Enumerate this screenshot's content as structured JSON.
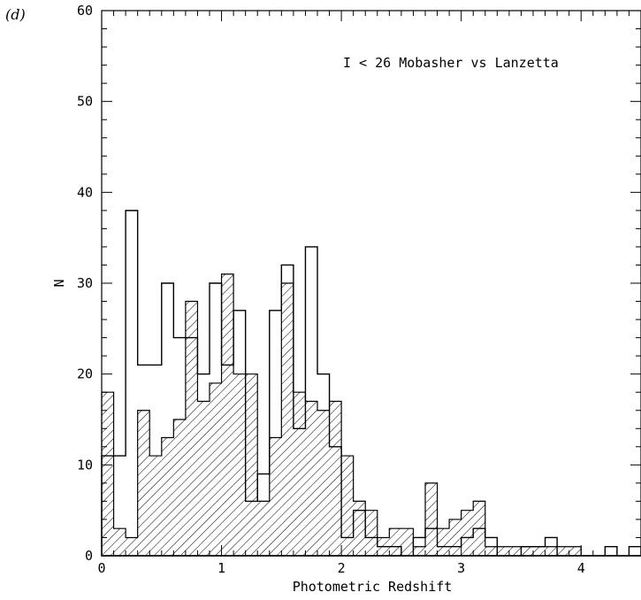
{
  "panel_label": "(d)",
  "chart_data": {
    "type": "histogram",
    "annotation": "I < 26 Mobasher vs Lanzetta",
    "xlabel": "Photometric Redshift",
    "ylabel": "N",
    "xlim": [
      0,
      4.5
    ],
    "ylim": [
      0,
      60
    ],
    "xticks": [
      0,
      1,
      2,
      3,
      4
    ],
    "yticks": [
      0,
      10,
      20,
      30,
      40,
      50,
      60
    ],
    "bin_width": 0.1,
    "grid": false,
    "series": [
      {
        "style": "open-outline",
        "values": [
          11,
          11,
          38,
          21,
          21,
          30,
          24,
          24,
          20,
          30,
          21,
          27,
          6,
          9,
          27,
          32,
          14,
          34,
          20,
          12,
          2,
          5,
          2,
          1,
          1,
          0,
          2,
          3,
          1,
          1,
          2,
          3,
          2,
          0,
          0,
          1,
          1,
          2,
          0,
          0,
          0,
          0,
          1,
          0,
          1
        ]
      },
      {
        "style": "hatched",
        "values": [
          18,
          3,
          2,
          16,
          11,
          13,
          15,
          28,
          17,
          19,
          31,
          20,
          20,
          6,
          13,
          30,
          18,
          17,
          16,
          17,
          11,
          6,
          5,
          2,
          3,
          3,
          1,
          8,
          3,
          4,
          5,
          6,
          1,
          1,
          1,
          1,
          1,
          1,
          1,
          1,
          0,
          0,
          0,
          0,
          0
        ]
      }
    ]
  }
}
